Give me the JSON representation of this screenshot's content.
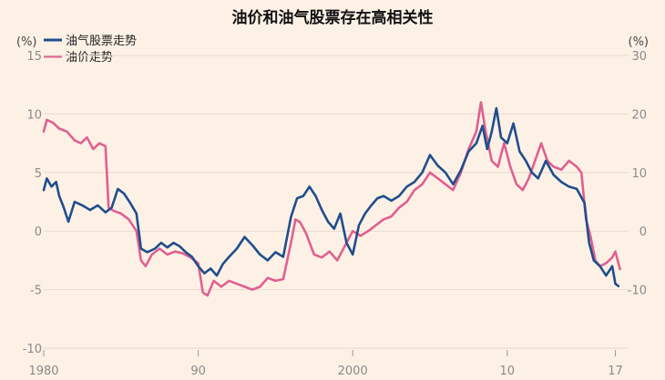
{
  "chart_data": {
    "type": "line",
    "title": "油价和油气股票存在高相关性",
    "left_unit": "(%)",
    "right_unit": "(%)",
    "y_left_range": [
      -10,
      15
    ],
    "y_right_range": [
      -20,
      30
    ],
    "y_left_ticks": [
      "15",
      "10",
      "5",
      "0",
      "-5",
      "-10"
    ],
    "y_right_ticks": [
      "30",
      "20",
      "10",
      "0",
      "-10"
    ],
    "x_range": [
      1980,
      2017.5
    ],
    "x_ticks": [
      {
        "x": 1980,
        "label": "1980"
      },
      {
        "x": 1990,
        "label": "90"
      },
      {
        "x": 2000,
        "label": "2000"
      },
      {
        "x": 2010,
        "label": "10"
      },
      {
        "x": 2017,
        "label": "17"
      }
    ],
    "grid": true,
    "legend_position": "top-left",
    "series": [
      {
        "name": "油气股票走势",
        "axis": "left",
        "color": "#1f4e8c",
        "points": [
          [
            1980.0,
            3.5
          ],
          [
            1980.2,
            4.5
          ],
          [
            1980.5,
            3.8
          ],
          [
            1980.8,
            4.2
          ],
          [
            1981.0,
            3.0
          ],
          [
            1981.3,
            2.0
          ],
          [
            1981.6,
            0.8
          ],
          [
            1982.0,
            2.5
          ],
          [
            1982.5,
            2.2
          ],
          [
            1983.0,
            1.8
          ],
          [
            1983.5,
            2.2
          ],
          [
            1984.0,
            1.6
          ],
          [
            1984.4,
            2.0
          ],
          [
            1984.8,
            3.6
          ],
          [
            1985.2,
            3.2
          ],
          [
            1985.6,
            2.4
          ],
          [
            1986.0,
            1.5
          ],
          [
            1986.3,
            -1.5
          ],
          [
            1986.7,
            -1.8
          ],
          [
            1987.2,
            -1.5
          ],
          [
            1987.6,
            -1.0
          ],
          [
            1988.0,
            -1.4
          ],
          [
            1988.4,
            -1.0
          ],
          [
            1988.8,
            -1.3
          ],
          [
            1989.2,
            -1.8
          ],
          [
            1989.6,
            -2.2
          ],
          [
            1990.0,
            -3.0
          ],
          [
            1990.4,
            -3.6
          ],
          [
            1990.8,
            -3.2
          ],
          [
            1991.2,
            -3.8
          ],
          [
            1991.6,
            -2.8
          ],
          [
            1992.0,
            -2.2
          ],
          [
            1992.5,
            -1.5
          ],
          [
            1993.0,
            -0.5
          ],
          [
            1993.5,
            -1.2
          ],
          [
            1994.0,
            -2.0
          ],
          [
            1994.5,
            -2.5
          ],
          [
            1995.0,
            -1.8
          ],
          [
            1995.5,
            -2.2
          ],
          [
            1996.0,
            1.2
          ],
          [
            1996.4,
            2.8
          ],
          [
            1996.8,
            3.0
          ],
          [
            1997.2,
            3.8
          ],
          [
            1997.6,
            3.0
          ],
          [
            1998.0,
            1.8
          ],
          [
            1998.4,
            0.8
          ],
          [
            1998.8,
            0.2
          ],
          [
            1999.2,
            1.5
          ],
          [
            1999.6,
            -1.0
          ],
          [
            2000.0,
            -2.0
          ],
          [
            2000.4,
            0.5
          ],
          [
            2000.8,
            1.5
          ],
          [
            2001.2,
            2.2
          ],
          [
            2001.6,
            2.8
          ],
          [
            2002.0,
            3.0
          ],
          [
            2002.5,
            2.6
          ],
          [
            2003.0,
            3.0
          ],
          [
            2003.5,
            3.8
          ],
          [
            2004.0,
            4.2
          ],
          [
            2004.5,
            5.0
          ],
          [
            2005.0,
            6.5
          ],
          [
            2005.5,
            5.6
          ],
          [
            2006.0,
            5.0
          ],
          [
            2006.5,
            4.0
          ],
          [
            2007.0,
            5.2
          ],
          [
            2007.5,
            6.8
          ],
          [
            2008.0,
            7.5
          ],
          [
            2008.4,
            9.0
          ],
          [
            2008.7,
            7.0
          ],
          [
            2009.0,
            8.5
          ],
          [
            2009.3,
            10.5
          ],
          [
            2009.6,
            8.0
          ],
          [
            2010.0,
            7.5
          ],
          [
            2010.4,
            9.2
          ],
          [
            2010.8,
            6.8
          ],
          [
            2011.2,
            6.0
          ],
          [
            2011.6,
            5.0
          ],
          [
            2012.0,
            4.5
          ],
          [
            2012.5,
            6.0
          ],
          [
            2013.0,
            4.8
          ],
          [
            2013.5,
            4.2
          ],
          [
            2014.0,
            3.8
          ],
          [
            2014.5,
            3.6
          ],
          [
            2015.0,
            2.4
          ],
          [
            2015.3,
            -1.0
          ],
          [
            2015.6,
            -2.5
          ],
          [
            2016.0,
            -3.0
          ],
          [
            2016.4,
            -3.8
          ],
          [
            2016.8,
            -3.0
          ],
          [
            2017.0,
            -4.5
          ],
          [
            2017.2,
            -4.7
          ]
        ]
      },
      {
        "name": "油价走势",
        "axis": "right",
        "color": "#e0608f",
        "points": [
          [
            1980.0,
            17.0
          ],
          [
            1980.2,
            19.0
          ],
          [
            1980.6,
            18.5
          ],
          [
            1981.0,
            17.5
          ],
          [
            1981.5,
            17.0
          ],
          [
            1982.0,
            15.5
          ],
          [
            1982.4,
            15.0
          ],
          [
            1982.8,
            16.0
          ],
          [
            1983.2,
            14.0
          ],
          [
            1983.6,
            15.0
          ],
          [
            1984.0,
            14.5
          ],
          [
            1984.2,
            4.0
          ],
          [
            1984.5,
            3.5
          ],
          [
            1985.0,
            3.0
          ],
          [
            1985.5,
            2.0
          ],
          [
            1986.0,
            0.0
          ],
          [
            1986.3,
            -5.0
          ],
          [
            1986.6,
            -6.0
          ],
          [
            1987.0,
            -4.0
          ],
          [
            1987.5,
            -3.0
          ],
          [
            1988.0,
            -4.0
          ],
          [
            1988.5,
            -3.5
          ],
          [
            1989.0,
            -3.8
          ],
          [
            1989.5,
            -4.5
          ],
          [
            1990.0,
            -5.5
          ],
          [
            1990.3,
            -10.5
          ],
          [
            1990.6,
            -11.0
          ],
          [
            1991.0,
            -8.5
          ],
          [
            1991.5,
            -9.5
          ],
          [
            1992.0,
            -8.5
          ],
          [
            1992.5,
            -9.0
          ],
          [
            1993.0,
            -9.5
          ],
          [
            1993.5,
            -10.0
          ],
          [
            1994.0,
            -9.5
          ],
          [
            1994.5,
            -8.0
          ],
          [
            1995.0,
            -8.5
          ],
          [
            1995.5,
            -8.2
          ],
          [
            1996.0,
            -2.0
          ],
          [
            1996.3,
            2.0
          ],
          [
            1996.6,
            1.5
          ],
          [
            1997.0,
            -0.5
          ],
          [
            1997.5,
            -4.0
          ],
          [
            1998.0,
            -4.5
          ],
          [
            1998.5,
            -3.5
          ],
          [
            1999.0,
            -5.0
          ],
          [
            1999.5,
            -2.5
          ],
          [
            2000.0,
            0.0
          ],
          [
            2000.5,
            -0.8
          ],
          [
            2001.0,
            0.0
          ],
          [
            2001.5,
            1.0
          ],
          [
            2002.0,
            2.0
          ],
          [
            2002.5,
            2.5
          ],
          [
            2003.0,
            4.0
          ],
          [
            2003.5,
            5.0
          ],
          [
            2004.0,
            7.0
          ],
          [
            2004.5,
            8.0
          ],
          [
            2005.0,
            10.0
          ],
          [
            2005.5,
            9.0
          ],
          [
            2006.0,
            8.0
          ],
          [
            2006.5,
            7.0
          ],
          [
            2007.0,
            10.0
          ],
          [
            2007.5,
            14.0
          ],
          [
            2008.0,
            17.0
          ],
          [
            2008.3,
            22.0
          ],
          [
            2008.6,
            17.0
          ],
          [
            2009.0,
            12.0
          ],
          [
            2009.4,
            11.0
          ],
          [
            2009.8,
            15.0
          ],
          [
            2010.2,
            11.0
          ],
          [
            2010.6,
            8.0
          ],
          [
            2011.0,
            7.0
          ],
          [
            2011.4,
            9.0
          ],
          [
            2011.8,
            12.0
          ],
          [
            2012.2,
            15.0
          ],
          [
            2012.6,
            12.0
          ],
          [
            2013.0,
            11.0
          ],
          [
            2013.5,
            10.5
          ],
          [
            2014.0,
            12.0
          ],
          [
            2014.5,
            11.0
          ],
          [
            2014.8,
            10.0
          ],
          [
            2015.1,
            2.0
          ],
          [
            2015.4,
            -1.0
          ],
          [
            2015.7,
            -5.0
          ],
          [
            2016.0,
            -6.0
          ],
          [
            2016.4,
            -5.5
          ],
          [
            2016.8,
            -4.5
          ],
          [
            2017.0,
            -3.5
          ],
          [
            2017.3,
            -6.5
          ]
        ]
      }
    ]
  }
}
